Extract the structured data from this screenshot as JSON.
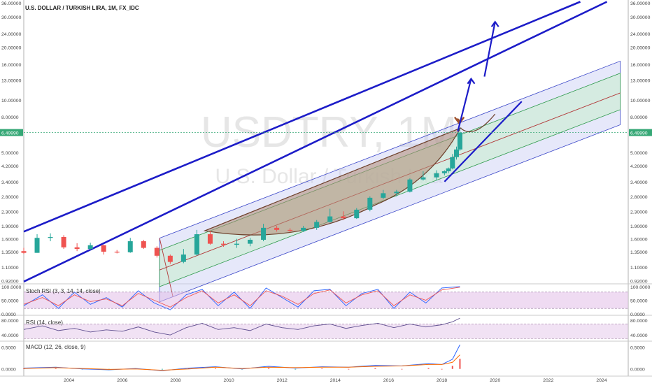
{
  "symbol_title": "U.S. DOLLAR / TURKISH LIRA, 1M, FX_IDC",
  "watermark": {
    "symbol": "USDTRY, 1M",
    "description": "U.S. Dollar / Turkish Lira"
  },
  "colors": {
    "up": "#26a69a",
    "down": "#ef5350",
    "channel_blue": "#1c1cc8",
    "current_price": "#36a876",
    "cup_fill": "#b08a74",
    "arrow_brown": "#a0522d",
    "stoch_k": "#2962ff",
    "stoch_d": "#ef5350",
    "oscillator_band": "#e1bee7",
    "rsi_line": "#5e4e8f",
    "macd_line": "#2962ff",
    "signal_line": "#ff6d00"
  },
  "current_price_label": "6.49990",
  "chart_data": [
    {
      "type": "candlestick",
      "title": "U.S. DOLLAR / TURKISH LIRA, 1M, FX_IDC",
      "scale": "log",
      "y_ticks": [
        "36.00000",
        "30.00000",
        "24.00000",
        "20.00000",
        "16.00000",
        "13.00000",
        "10.00000",
        "8.00000",
        "6.49990",
        "5.00000",
        "4.20000",
        "3.40000",
        "2.80000",
        "2.30000",
        "1.90000",
        "1.60000",
        "1.35000",
        "1.10000",
        "0.92000"
      ],
      "x_ticks": [
        "2004",
        "2006",
        "2008",
        "2010",
        "2012",
        "2014",
        "2016",
        "2018",
        "2020",
        "2022",
        "2024"
      ],
      "ylim": [
        0.9,
        36
      ],
      "xlim": [
        2002.3,
        2025.0
      ],
      "candles": [
        {
          "x": 2002.3,
          "o": 1.36,
          "h": 1.42,
          "l": 1.31,
          "c": 1.33
        },
        {
          "x": 2002.8,
          "o": 1.33,
          "h": 1.7,
          "l": 1.33,
          "c": 1.62
        },
        {
          "x": 2003.3,
          "o": 1.62,
          "h": 1.72,
          "l": 1.55,
          "c": 1.64
        },
        {
          "x": 2003.8,
          "o": 1.64,
          "h": 1.68,
          "l": 1.4,
          "c": 1.43
        },
        {
          "x": 2004.3,
          "o": 1.43,
          "h": 1.51,
          "l": 1.36,
          "c": 1.4
        },
        {
          "x": 2004.8,
          "o": 1.4,
          "h": 1.52,
          "l": 1.38,
          "c": 1.47
        },
        {
          "x": 2005.3,
          "o": 1.47,
          "h": 1.48,
          "l": 1.3,
          "c": 1.35
        },
        {
          "x": 2005.8,
          "o": 1.35,
          "h": 1.38,
          "l": 1.32,
          "c": 1.34
        },
        {
          "x": 2006.3,
          "o": 1.34,
          "h": 1.62,
          "l": 1.33,
          "c": 1.55
        },
        {
          "x": 2006.8,
          "o": 1.55,
          "h": 1.58,
          "l": 1.4,
          "c": 1.42
        },
        {
          "x": 2007.3,
          "o": 1.42,
          "h": 1.45,
          "l": 1.25,
          "c": 1.28
        },
        {
          "x": 2007.8,
          "o": 1.28,
          "h": 1.3,
          "l": 1.15,
          "c": 1.18
        },
        {
          "x": 2008.3,
          "o": 1.18,
          "h": 1.4,
          "l": 1.16,
          "c": 1.3
        },
        {
          "x": 2008.8,
          "o": 1.3,
          "h": 1.8,
          "l": 1.28,
          "c": 1.7
        },
        {
          "x": 2009.3,
          "o": 1.7,
          "h": 1.78,
          "l": 1.48,
          "c": 1.5
        },
        {
          "x": 2009.8,
          "o": 1.5,
          "h": 1.55,
          "l": 1.44,
          "c": 1.48
        },
        {
          "x": 2010.3,
          "o": 1.48,
          "h": 1.6,
          "l": 1.42,
          "c": 1.5
        },
        {
          "x": 2010.8,
          "o": 1.5,
          "h": 1.62,
          "l": 1.45,
          "c": 1.58
        },
        {
          "x": 2011.3,
          "o": 1.58,
          "h": 1.95,
          "l": 1.55,
          "c": 1.85
        },
        {
          "x": 2011.8,
          "o": 1.85,
          "h": 1.9,
          "l": 1.76,
          "c": 1.8
        },
        {
          "x": 2012.3,
          "o": 1.8,
          "h": 1.84,
          "l": 1.74,
          "c": 1.78
        },
        {
          "x": 2012.8,
          "o": 1.78,
          "h": 1.9,
          "l": 1.75,
          "c": 1.85
        },
        {
          "x": 2013.3,
          "o": 1.85,
          "h": 2.05,
          "l": 1.8,
          "c": 2.0
        },
        {
          "x": 2013.8,
          "o": 2.0,
          "h": 2.38,
          "l": 1.98,
          "c": 2.15
        },
        {
          "x": 2014.3,
          "o": 2.15,
          "h": 2.3,
          "l": 2.05,
          "c": 2.1
        },
        {
          "x": 2014.8,
          "o": 2.1,
          "h": 2.4,
          "l": 2.08,
          "c": 2.35
        },
        {
          "x": 2015.3,
          "o": 2.35,
          "h": 2.8,
          "l": 2.3,
          "c": 2.75
        },
        {
          "x": 2015.8,
          "o": 2.75,
          "h": 3.05,
          "l": 2.7,
          "c": 2.92
        },
        {
          "x": 2016.3,
          "o": 2.92,
          "h": 3.05,
          "l": 2.8,
          "c": 2.98
        },
        {
          "x": 2016.8,
          "o": 2.98,
          "h": 3.55,
          "l": 2.95,
          "c": 3.5
        },
        {
          "x": 2017.3,
          "o": 3.5,
          "h": 3.9,
          "l": 3.45,
          "c": 3.6
        },
        {
          "x": 2017.8,
          "o": 3.6,
          "h": 3.95,
          "l": 3.45,
          "c": 3.8
        },
        {
          "x": 2018.1,
          "o": 3.8,
          "h": 3.95,
          "l": 3.7,
          "c": 3.9
        },
        {
          "x": 2018.25,
          "o": 3.9,
          "h": 4.1,
          "l": 3.8,
          "c": 4.05
        },
        {
          "x": 2018.4,
          "o": 4.05,
          "h": 4.9,
          "l": 4.0,
          "c": 4.7
        },
        {
          "x": 2018.55,
          "o": 4.7,
          "h": 5.4,
          "l": 4.55,
          "c": 5.2
        },
        {
          "x": 2018.68,
          "o": 5.2,
          "h": 6.9,
          "l": 5.1,
          "c": 6.5
        }
      ]
    },
    {
      "type": "line",
      "title": "Stoch RSI (3, 3, 14, 14, close)",
      "y_ticks": [
        "100.0000",
        "50.0000",
        "0.0000"
      ],
      "ylim": [
        0,
        100
      ],
      "series": [
        {
          "x": [
            2002.3,
            2003.0,
            2003.6,
            2004.2,
            2004.8,
            2005.4,
            2006.0,
            2006.6,
            2007.2,
            2007.8,
            2008.4,
            2009.0,
            2009.6,
            2010.2,
            2010.8,
            2011.4,
            2012.0,
            2012.6,
            2013.2,
            2013.8,
            2014.4,
            2015.0,
            2015.6,
            2016.2,
            2016.8,
            2017.4,
            2018.0,
            2018.68
          ],
          "values": [
            30,
            70,
            20,
            80,
            35,
            60,
            25,
            85,
            40,
            15,
            70,
            90,
            30,
            80,
            20,
            95,
            60,
            25,
            85,
            90,
            30,
            75,
            90,
            20,
            80,
            40,
            95,
            100
          ]
        },
        {
          "x": [
            2002.3,
            2003.0,
            2003.6,
            2004.2,
            2004.8,
            2005.4,
            2006.0,
            2006.6,
            2007.2,
            2007.8,
            2008.4,
            2009.0,
            2009.6,
            2010.2,
            2010.8,
            2011.4,
            2012.0,
            2012.6,
            2013.2,
            2013.8,
            2014.4,
            2015.0,
            2015.6,
            2016.2,
            2016.8,
            2017.4,
            2018.0,
            2018.68
          ],
          "values": [
            35,
            60,
            30,
            70,
            45,
            55,
            30,
            75,
            50,
            25,
            60,
            85,
            40,
            70,
            30,
            85,
            65,
            35,
            75,
            88,
            40,
            70,
            85,
            30,
            70,
            50,
            88,
            98
          ]
        }
      ]
    },
    {
      "type": "line",
      "title": "RSI (14, close)",
      "y_ticks": [
        "80.0000",
        "40.0000"
      ],
      "ylim": [
        25,
        90
      ],
      "series": [
        {
          "x": [
            2002.3,
            2003.0,
            2003.6,
            2004.2,
            2004.8,
            2005.4,
            2006.0,
            2006.6,
            2007.2,
            2007.8,
            2008.4,
            2009.0,
            2009.6,
            2010.2,
            2010.8,
            2011.4,
            2012.0,
            2012.6,
            2013.2,
            2013.8,
            2014.4,
            2015.0,
            2015.6,
            2016.2,
            2016.8,
            2017.4,
            2018.0,
            2018.4,
            2018.68
          ],
          "values": [
            55,
            65,
            52,
            58,
            48,
            54,
            50,
            62,
            48,
            40,
            60,
            72,
            55,
            60,
            52,
            70,
            60,
            55,
            65,
            70,
            58,
            66,
            72,
            60,
            70,
            62,
            68,
            76,
            86
          ]
        }
      ]
    },
    {
      "type": "line",
      "title": "MACD (12, 26, close, 9)",
      "y_ticks": [
        "0.5000",
        "0.0000"
      ],
      "ylim": [
        -0.1,
        0.6
      ],
      "series": [
        {
          "x": [
            2002.3,
            2003.5,
            2004.5,
            2005.5,
            2006.5,
            2007.5,
            2008.5,
            2009.5,
            2010.5,
            2011.5,
            2012.5,
            2013.5,
            2014.5,
            2015.5,
            2016.5,
            2017.5,
            2018.0,
            2018.4,
            2018.68
          ],
          "values": [
            0.02,
            0.04,
            0.0,
            -0.02,
            0.01,
            -0.04,
            0.02,
            0.05,
            0.0,
            0.06,
            0.02,
            0.05,
            0.04,
            0.08,
            0.07,
            0.12,
            0.1,
            0.22,
            0.55
          ]
        },
        {
          "x": [
            2002.3,
            2003.5,
            2004.5,
            2005.5,
            2006.5,
            2007.5,
            2008.5,
            2009.5,
            2010.5,
            2011.5,
            2012.5,
            2013.5,
            2014.5,
            2015.5,
            2016.5,
            2017.5,
            2018.0,
            2018.4,
            2018.68
          ],
          "values": [
            0.01,
            0.03,
            0.01,
            -0.01,
            0.0,
            -0.03,
            0.0,
            0.04,
            0.01,
            0.04,
            0.03,
            0.04,
            0.04,
            0.06,
            0.07,
            0.1,
            0.1,
            0.15,
            0.32
          ]
        }
      ]
    }
  ]
}
